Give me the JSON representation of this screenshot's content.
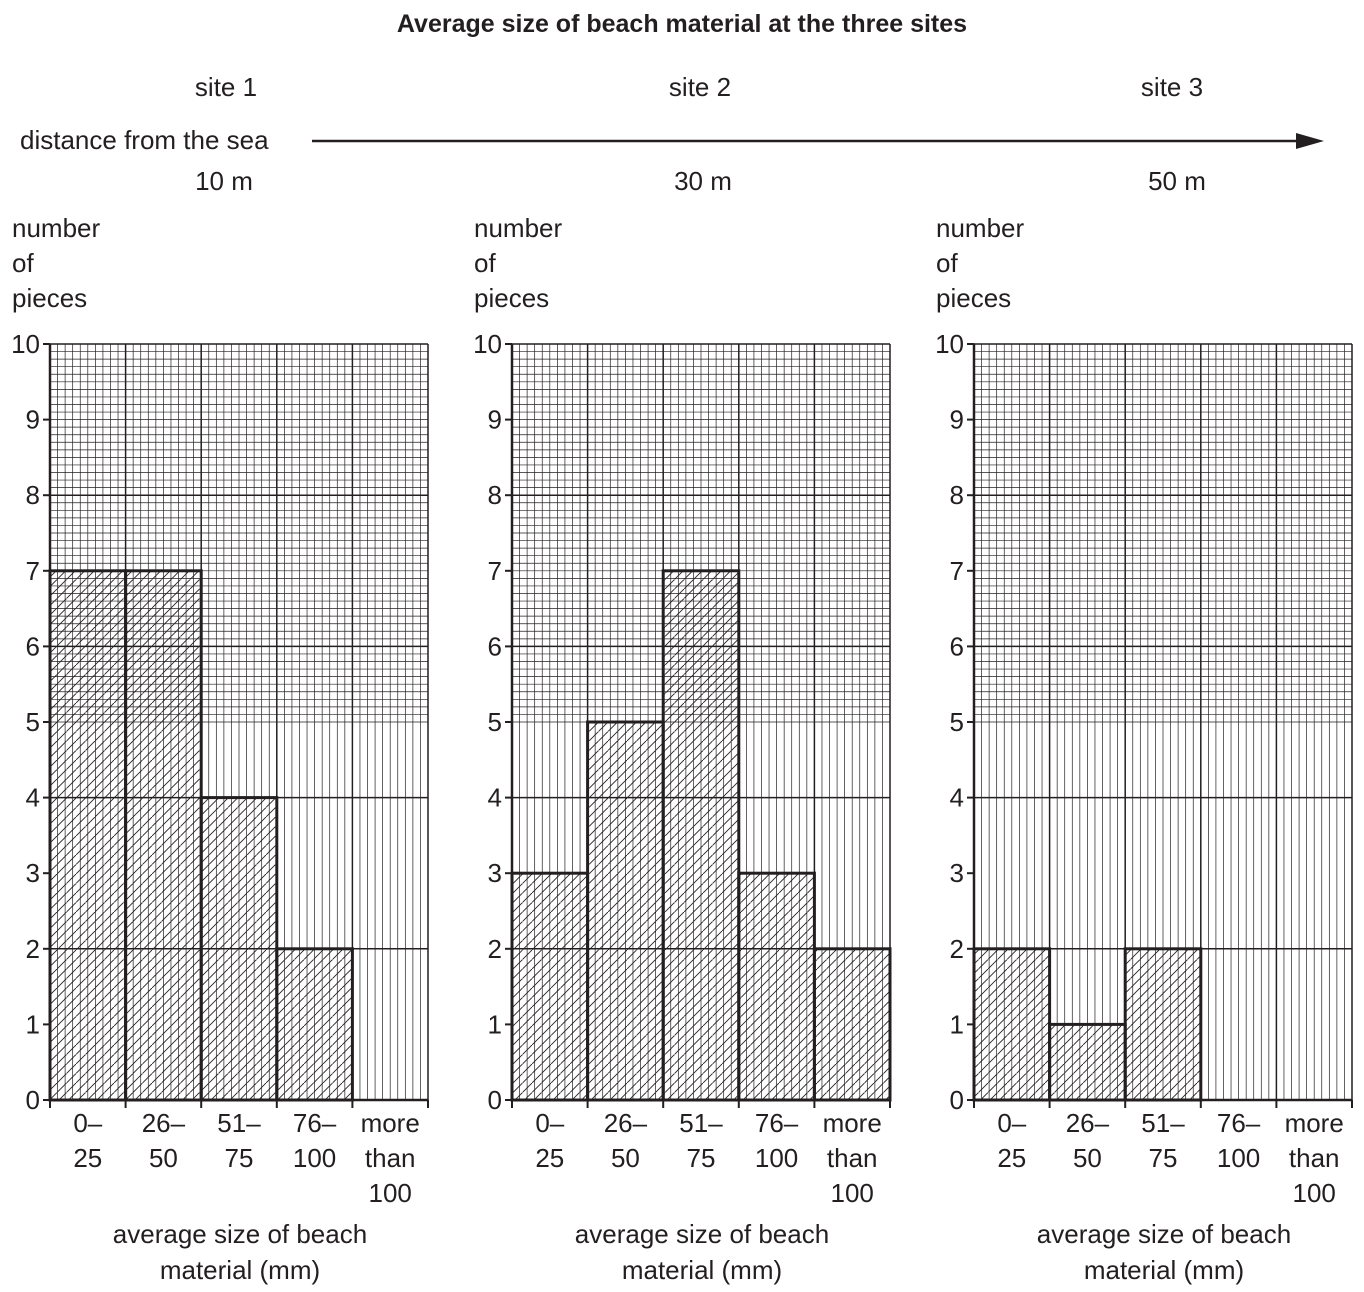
{
  "title": "Average size of beach material at the three sites",
  "distance_label": "distance from the sea",
  "sites": [
    {
      "name": "site 1",
      "distance": "10 m"
    },
    {
      "name": "site 2",
      "distance": "30 m"
    },
    {
      "name": "site 3",
      "distance": "50 m"
    }
  ],
  "chart_data": [
    {
      "type": "bar",
      "title": "site 1",
      "ylabel_lines": [
        "number",
        "of",
        "pieces"
      ],
      "xlabel_lines": [
        "average size of beach",
        "material (mm)"
      ],
      "categories": [
        "0–25",
        "26–50",
        "51–75",
        "76–100",
        "more than 100"
      ],
      "category_label_lines": [
        [
          "0–",
          "25"
        ],
        [
          "26–",
          "50"
        ],
        [
          "51–",
          "75"
        ],
        [
          "76–",
          "100"
        ],
        [
          "more",
          "than",
          "100"
        ]
      ],
      "values": [
        7,
        7,
        4,
        2,
        0
      ],
      "ylim": [
        0,
        10
      ],
      "yticks": [
        "0",
        "1",
        "2",
        "3",
        "4",
        "5",
        "6",
        "7",
        "8",
        "9",
        "10"
      ],
      "grid": true,
      "bar_fill": "hatched"
    },
    {
      "type": "bar",
      "title": "site 2",
      "ylabel_lines": [
        "number",
        "of",
        "pieces"
      ],
      "xlabel_lines": [
        "average size of beach",
        "material (mm)"
      ],
      "categories": [
        "0–25",
        "26–50",
        "51–75",
        "76–100",
        "more than 100"
      ],
      "category_label_lines": [
        [
          "0–",
          "25"
        ],
        [
          "26–",
          "50"
        ],
        [
          "51–",
          "75"
        ],
        [
          "76–",
          "100"
        ],
        [
          "more",
          "than",
          "100"
        ]
      ],
      "values": [
        3,
        5,
        7,
        3,
        2
      ],
      "ylim": [
        0,
        10
      ],
      "yticks": [
        "0",
        "1",
        "2",
        "3",
        "4",
        "5",
        "6",
        "7",
        "8",
        "9",
        "10"
      ],
      "grid": true,
      "bar_fill": "hatched"
    },
    {
      "type": "bar",
      "title": "site 3",
      "ylabel_lines": [
        "number",
        "of",
        "pieces"
      ],
      "xlabel_lines": [
        "average size of beach",
        "material (mm)"
      ],
      "categories": [
        "0–25",
        "26–50",
        "51–75",
        "76–100",
        "more than 100"
      ],
      "category_label_lines": [
        [
          "0–",
          "25"
        ],
        [
          "26–",
          "50"
        ],
        [
          "51–",
          "75"
        ],
        [
          "76–",
          "100"
        ],
        [
          "more",
          "than",
          "100"
        ]
      ],
      "values": [
        2,
        1,
        2,
        0,
        0
      ],
      "ylim": [
        0,
        10
      ],
      "yticks": [
        "0",
        "1",
        "2",
        "3",
        "4",
        "5",
        "6",
        "7",
        "8",
        "9",
        "10"
      ],
      "grid": true,
      "bar_fill": "hatched"
    }
  ],
  "colors": {
    "ink": "#231f20",
    "background": "#ffffff"
  }
}
